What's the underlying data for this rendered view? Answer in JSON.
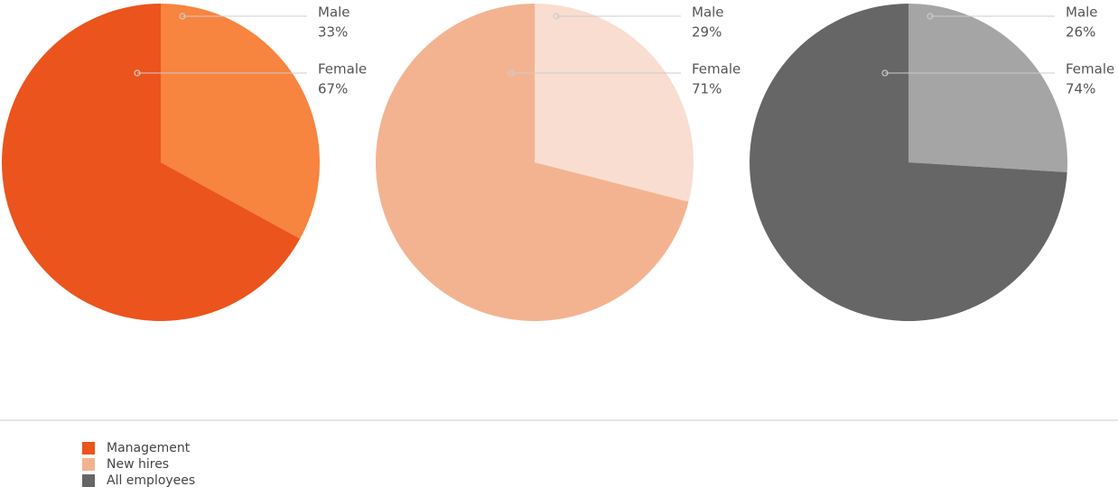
{
  "chart_data": [
    {
      "type": "pie",
      "categories": [
        "Male",
        "Female"
      ],
      "series": [
        {
          "name": "Management",
          "color": "#eb541c",
          "colors": [
            "#f7843f",
            "#eb541c"
          ],
          "values": [
            33,
            67
          ],
          "value_labels": [
            "33%",
            "67%"
          ]
        }
      ]
    },
    {
      "type": "pie",
      "categories": [
        "Male",
        "Female"
      ],
      "series": [
        {
          "name": "New hires",
          "color": "#f3b391",
          "colors": [
            "#f9ddd0",
            "#f3b391"
          ],
          "values": [
            29,
            71
          ],
          "value_labels": [
            "29%",
            "71%"
          ]
        }
      ]
    },
    {
      "type": "pie",
      "categories": [
        "Male",
        "Female"
      ],
      "series": [
        {
          "name": "All employees",
          "color": "#666666",
          "colors": [
            "#a5a5a5",
            "#666666"
          ],
          "values": [
            26,
            74
          ],
          "value_labels": [
            "26%",
            "74%"
          ]
        }
      ]
    }
  ]
}
